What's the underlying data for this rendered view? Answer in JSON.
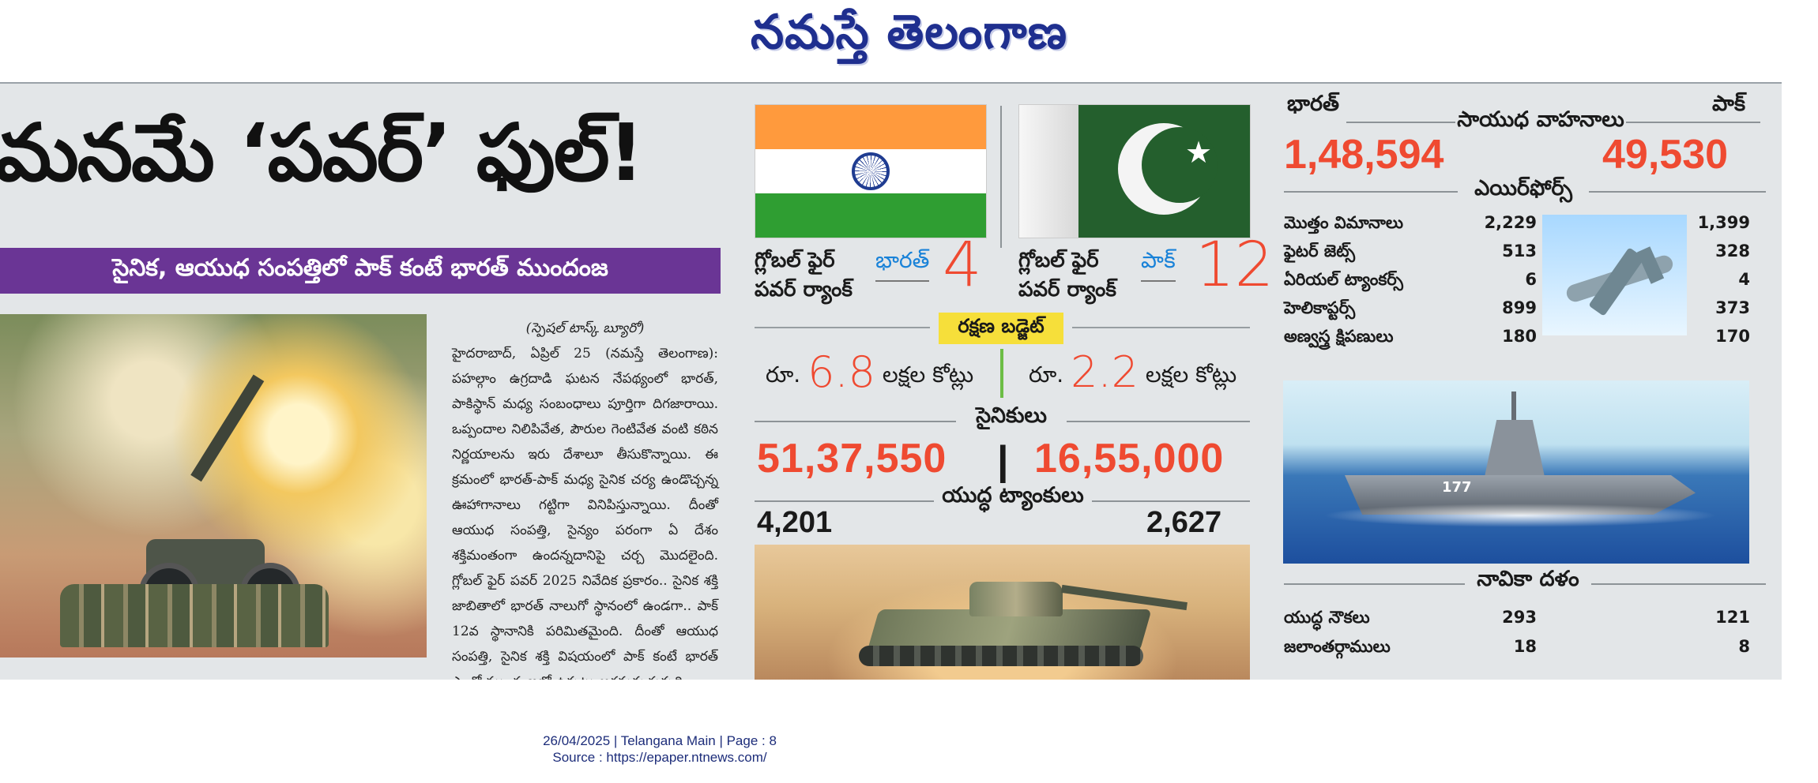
{
  "masthead": {
    "title": "నమస్తే తెలంగాణ"
  },
  "story": {
    "headline": "మనమే ‘పవర్’ ఫుల్!",
    "subhead": "సైనిక, ఆయుధ సంపత్తిలో పాక్ కంటే భారత్ ముందంజ",
    "byline": "(స్పెషల్ టాస్క్ బ్యూరో)",
    "body": "హైదరాబాద్, ఏప్రిల్ 25 (నమస్తే తెలంగాణ): పహల్గాం ఉగ్రదాడి ఘటన నేపథ్యంలో భారత్, పాకిస్థాన్ మధ్య సంబంధాలు పూర్తిగా దిగజారాయి. ఒప్పందాల నిలిపివేత, పౌరుల గెంటివేత వంటి కఠిన నిర్ణయాలను ఇరు దేశాలూ తీసుకొన్నాయి. ఈ క్రమంలో భారత్-పాక్ మధ్య సైనిక చర్య ఉండొచ్చన్న ఊహాగానాలు గట్టిగా వినిపిస్తున్నాయి. దీంతో ఆయుధ సంపత్తి, సైన్యం పరంగా ఏ దేశం శక్తిమంతంగా ఉందన్నదానిపై చర్చ మొదలైంది. గ్లోబల్ ఫైర్ పవర్ 2025 నివేదిక ప్రకారం.. సైనిక శక్తి జాబితాలో భారత్ నాలుగో స్థానంలో ఉండగా.. పాక్ 12వ స్థానానికి పరిమితమైంది. దీంతో ఆయుధ సంపత్తి, సైనిక శక్తి విషయంలో పాక్ కంటే భారత్ ఎంతో ముందంజలో ఉన్నట్టు అర్థమవుతున్నది."
  },
  "icons": {
    "india_flag": "india-flag-icon",
    "pakistan_flag": "pakistan-flag-icon",
    "artillery_photo": "artillery-photo",
    "tank_photo": "tank-photo",
    "aircraft_photo": "aircraft-photo",
    "warship_photo": "warship-photo"
  },
  "colors": {
    "purple": "#6a3595",
    "red": "#ef4a31",
    "blue": "#1982d8",
    "yellow": "#f6df3a",
    "navy": "#1f2f8f"
  },
  "comparison": {
    "india": {
      "label": "గ్లోబల్ ఫైర్ పవర్ ర్యాంక్",
      "country": "భారత్",
      "rank": "4",
      "budget_prefix": "రూ.",
      "budget": "6.8",
      "budget_unit": "లక్షల కోట్లు",
      "soldiers": "51,37,550",
      "tanks": "4,201"
    },
    "pakistan": {
      "label": "గ్లోబల్ ఫైర్ పవర్ ర్యాంక్",
      "country": "పాక్",
      "rank": "12",
      "budget_prefix": "రూ.",
      "budget": "2.2",
      "budget_unit": "లక్షల కోట్లు",
      "soldiers": "16,55,000",
      "tanks": "2,627"
    },
    "sections": {
      "budget": "రక్షణ బడ్జెట్",
      "soldiers": "సైనికులు",
      "tanks": "యుద్ధ ట్యాంకులు",
      "vehicles": "సాయుధ వాహనాలు",
      "airforce": "ఎయిర్‌ఫోర్స్",
      "navy": "నావికా దళం"
    },
    "top_labels": {
      "india": "భారత్",
      "pakistan": "పాక్"
    },
    "armored_vehicles": {
      "india": "1,48,594",
      "pakistan": "49,530"
    },
    "soldier_separator": "|",
    "airforce_rows": [
      {
        "name": "మొత్తం విమానాలు",
        "india": "2,229",
        "pakistan": "1,399"
      },
      {
        "name": "ఫైటర్ జెట్స్",
        "india": "513",
        "pakistan": "328"
      },
      {
        "name": "ఏరియల్ ట్యాంకర్స్",
        "india": "6",
        "pakistan": "4"
      },
      {
        "name": "హెలికాప్టర్స్",
        "india": "899",
        "pakistan": "373"
      },
      {
        "name": "అణ్వస్త్ర క్షిపణులు",
        "india": "180",
        "pakistan": "170"
      }
    ],
    "navy_rows": [
      {
        "name": "యుద్ధ నౌకలు",
        "india": "293",
        "pakistan": "121"
      },
      {
        "name": "జలాంతర్గాములు",
        "india": "18",
        "pakistan": "8"
      }
    ],
    "ship_number": "177"
  },
  "footer": {
    "line1": "26/04/2025 | Telangana Main | Page : 8",
    "line2": "Source : https://epaper.ntnews.com/"
  }
}
